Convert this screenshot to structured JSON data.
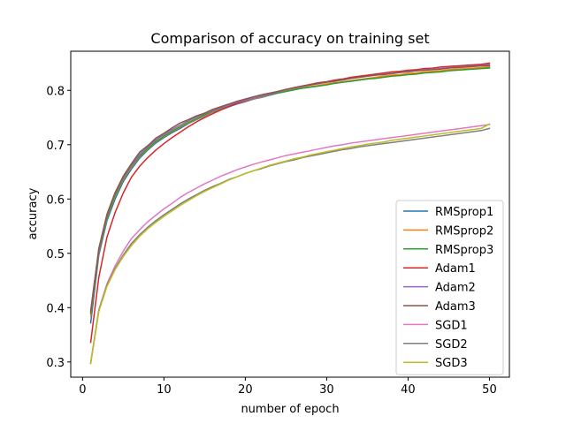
{
  "chart_data": {
    "type": "line",
    "title": "Comparison of accuracy on training set",
    "xlabel": "number of epoch",
    "ylabel": "accuracy",
    "xlim": [
      -1.45,
      52.45
    ],
    "ylim": [
      0.272,
      0.872
    ],
    "xticks": [
      0,
      10,
      20,
      30,
      40,
      50
    ],
    "yticks": [
      0.3,
      0.4,
      0.5,
      0.6,
      0.7,
      0.8
    ],
    "xtick_labels": [
      "0",
      "10",
      "20",
      "30",
      "40",
      "50"
    ],
    "ytick_labels": [
      "0.3",
      "0.4",
      "0.5",
      "0.6",
      "0.7",
      "0.8"
    ],
    "legend_position": "lower-right",
    "grid": false,
    "x": [
      1,
      2,
      3,
      4,
      5,
      6,
      7,
      8,
      9,
      10,
      11,
      12,
      13,
      14,
      15,
      16,
      17,
      18,
      19,
      20,
      21,
      22,
      23,
      24,
      25,
      26,
      27,
      28,
      29,
      30,
      31,
      32,
      33,
      34,
      35,
      36,
      37,
      38,
      39,
      40,
      41,
      42,
      43,
      44,
      45,
      46,
      47,
      48,
      49,
      50
    ],
    "series": [
      {
        "name": "RMSprop1",
        "color": "#1f77b4",
        "values": [
          0.372,
          0.497,
          0.56,
          0.6,
          0.632,
          0.655,
          0.675,
          0.69,
          0.703,
          0.713,
          0.722,
          0.73,
          0.739,
          0.746,
          0.753,
          0.76,
          0.765,
          0.77,
          0.775,
          0.779,
          0.784,
          0.787,
          0.791,
          0.795,
          0.798,
          0.801,
          0.804,
          0.806,
          0.808,
          0.811,
          0.813,
          0.815,
          0.817,
          0.819,
          0.821,
          0.823,
          0.825,
          0.827,
          0.828,
          0.83,
          0.831,
          0.833,
          0.834,
          0.835,
          0.837,
          0.838,
          0.839,
          0.84,
          0.841,
          0.843
        ]
      },
      {
        "name": "RMSprop2",
        "color": "#ff7f0e",
        "values": [
          0.384,
          0.503,
          0.565,
          0.605,
          0.636,
          0.658,
          0.678,
          0.692,
          0.705,
          0.715,
          0.724,
          0.732,
          0.74,
          0.747,
          0.754,
          0.761,
          0.766,
          0.771,
          0.776,
          0.78,
          0.785,
          0.788,
          0.792,
          0.796,
          0.799,
          0.802,
          0.805,
          0.807,
          0.809,
          0.812,
          0.814,
          0.816,
          0.818,
          0.82,
          0.822,
          0.824,
          0.826,
          0.828,
          0.829,
          0.831,
          0.832,
          0.834,
          0.835,
          0.836,
          0.838,
          0.839,
          0.84,
          0.841,
          0.842,
          0.844
        ]
      },
      {
        "name": "RMSprop3",
        "color": "#2ca02c",
        "values": [
          0.389,
          0.505,
          0.567,
          0.607,
          0.638,
          0.66,
          0.679,
          0.693,
          0.706,
          0.716,
          0.725,
          0.733,
          0.741,
          0.748,
          0.755,
          0.762,
          0.767,
          0.772,
          0.777,
          0.781,
          0.786,
          0.789,
          0.793,
          0.795,
          0.798,
          0.801,
          0.804,
          0.806,
          0.808,
          0.81,
          0.813,
          0.815,
          0.817,
          0.819,
          0.821,
          0.822,
          0.824,
          0.826,
          0.827,
          0.829,
          0.83,
          0.832,
          0.833,
          0.834,
          0.836,
          0.837,
          0.838,
          0.839,
          0.84,
          0.841
        ]
      },
      {
        "name": "Adam1",
        "color": "#d62728",
        "values": [
          0.336,
          0.456,
          0.53,
          0.575,
          0.611,
          0.64,
          0.66,
          0.676,
          0.69,
          0.702,
          0.713,
          0.723,
          0.733,
          0.742,
          0.75,
          0.757,
          0.764,
          0.77,
          0.776,
          0.781,
          0.786,
          0.79,
          0.794,
          0.798,
          0.801,
          0.805,
          0.808,
          0.811,
          0.814,
          0.816,
          0.819,
          0.821,
          0.824,
          0.826,
          0.828,
          0.83,
          0.832,
          0.834,
          0.835,
          0.837,
          0.838,
          0.84,
          0.841,
          0.843,
          0.844,
          0.845,
          0.846,
          0.847,
          0.848,
          0.85
        ]
      },
      {
        "name": "Adam2",
        "color": "#9467bd",
        "values": [
          0.395,
          0.508,
          0.571,
          0.611,
          0.64,
          0.662,
          0.682,
          0.696,
          0.709,
          0.719,
          0.728,
          0.736,
          0.744,
          0.751,
          0.757,
          0.763,
          0.768,
          0.773,
          0.778,
          0.782,
          0.786,
          0.79,
          0.794,
          0.797,
          0.801,
          0.804,
          0.807,
          0.81,
          0.812,
          0.815,
          0.817,
          0.819,
          0.822,
          0.824,
          0.826,
          0.828,
          0.83,
          0.831,
          0.833,
          0.835,
          0.836,
          0.838,
          0.839,
          0.84,
          0.842,
          0.843,
          0.844,
          0.845,
          0.846,
          0.848
        ]
      },
      {
        "name": "Adam3",
        "color": "#8c564b",
        "values": [
          0.392,
          0.509,
          0.572,
          0.612,
          0.642,
          0.665,
          0.686,
          0.698,
          0.712,
          0.721,
          0.731,
          0.74,
          0.746,
          0.753,
          0.758,
          0.765,
          0.77,
          0.775,
          0.78,
          0.784,
          0.788,
          0.792,
          0.795,
          0.798,
          0.802,
          0.805,
          0.808,
          0.81,
          0.813,
          0.815,
          0.817,
          0.82,
          0.822,
          0.824,
          0.826,
          0.828,
          0.829,
          0.831,
          0.833,
          0.834,
          0.836,
          0.837,
          0.838,
          0.839,
          0.841,
          0.842,
          0.843,
          0.844,
          0.845,
          0.846
        ]
      },
      {
        "name": "SGD1",
        "color": "#e377c2",
        "values": [
          0.298,
          0.396,
          0.444,
          0.477,
          0.504,
          0.527,
          0.543,
          0.558,
          0.57,
          0.582,
          0.592,
          0.603,
          0.612,
          0.62,
          0.628,
          0.635,
          0.642,
          0.648,
          0.654,
          0.659,
          0.664,
          0.668,
          0.672,
          0.676,
          0.68,
          0.683,
          0.686,
          0.689,
          0.692,
          0.695,
          0.698,
          0.7,
          0.703,
          0.705,
          0.707,
          0.709,
          0.711,
          0.713,
          0.715,
          0.717,
          0.719,
          0.721,
          0.723,
          0.725,
          0.727,
          0.729,
          0.731,
          0.733,
          0.735,
          0.737
        ]
      },
      {
        "name": "SGD2",
        "color": "#7f7f7f",
        "values": [
          0.298,
          0.395,
          0.441,
          0.472,
          0.497,
          0.518,
          0.534,
          0.548,
          0.56,
          0.571,
          0.581,
          0.591,
          0.6,
          0.608,
          0.616,
          0.623,
          0.629,
          0.636,
          0.641,
          0.647,
          0.652,
          0.656,
          0.661,
          0.665,
          0.669,
          0.672,
          0.676,
          0.679,
          0.682,
          0.685,
          0.688,
          0.691,
          0.693,
          0.696,
          0.698,
          0.7,
          0.702,
          0.704,
          0.706,
          0.708,
          0.71,
          0.712,
          0.714,
          0.716,
          0.718,
          0.72,
          0.722,
          0.724,
          0.726,
          0.73
        ]
      },
      {
        "name": "SGD3",
        "color": "#bcbd22",
        "values": [
          0.297,
          0.393,
          0.439,
          0.47,
          0.494,
          0.514,
          0.531,
          0.545,
          0.557,
          0.568,
          0.578,
          0.588,
          0.597,
          0.606,
          0.614,
          0.621,
          0.628,
          0.635,
          0.641,
          0.647,
          0.652,
          0.657,
          0.662,
          0.666,
          0.67,
          0.674,
          0.677,
          0.681,
          0.684,
          0.687,
          0.69,
          0.693,
          0.696,
          0.698,
          0.701,
          0.703,
          0.705,
          0.708,
          0.71,
          0.712,
          0.714,
          0.716,
          0.718,
          0.72,
          0.722,
          0.724,
          0.726,
          0.728,
          0.73,
          0.738
        ]
      }
    ]
  }
}
